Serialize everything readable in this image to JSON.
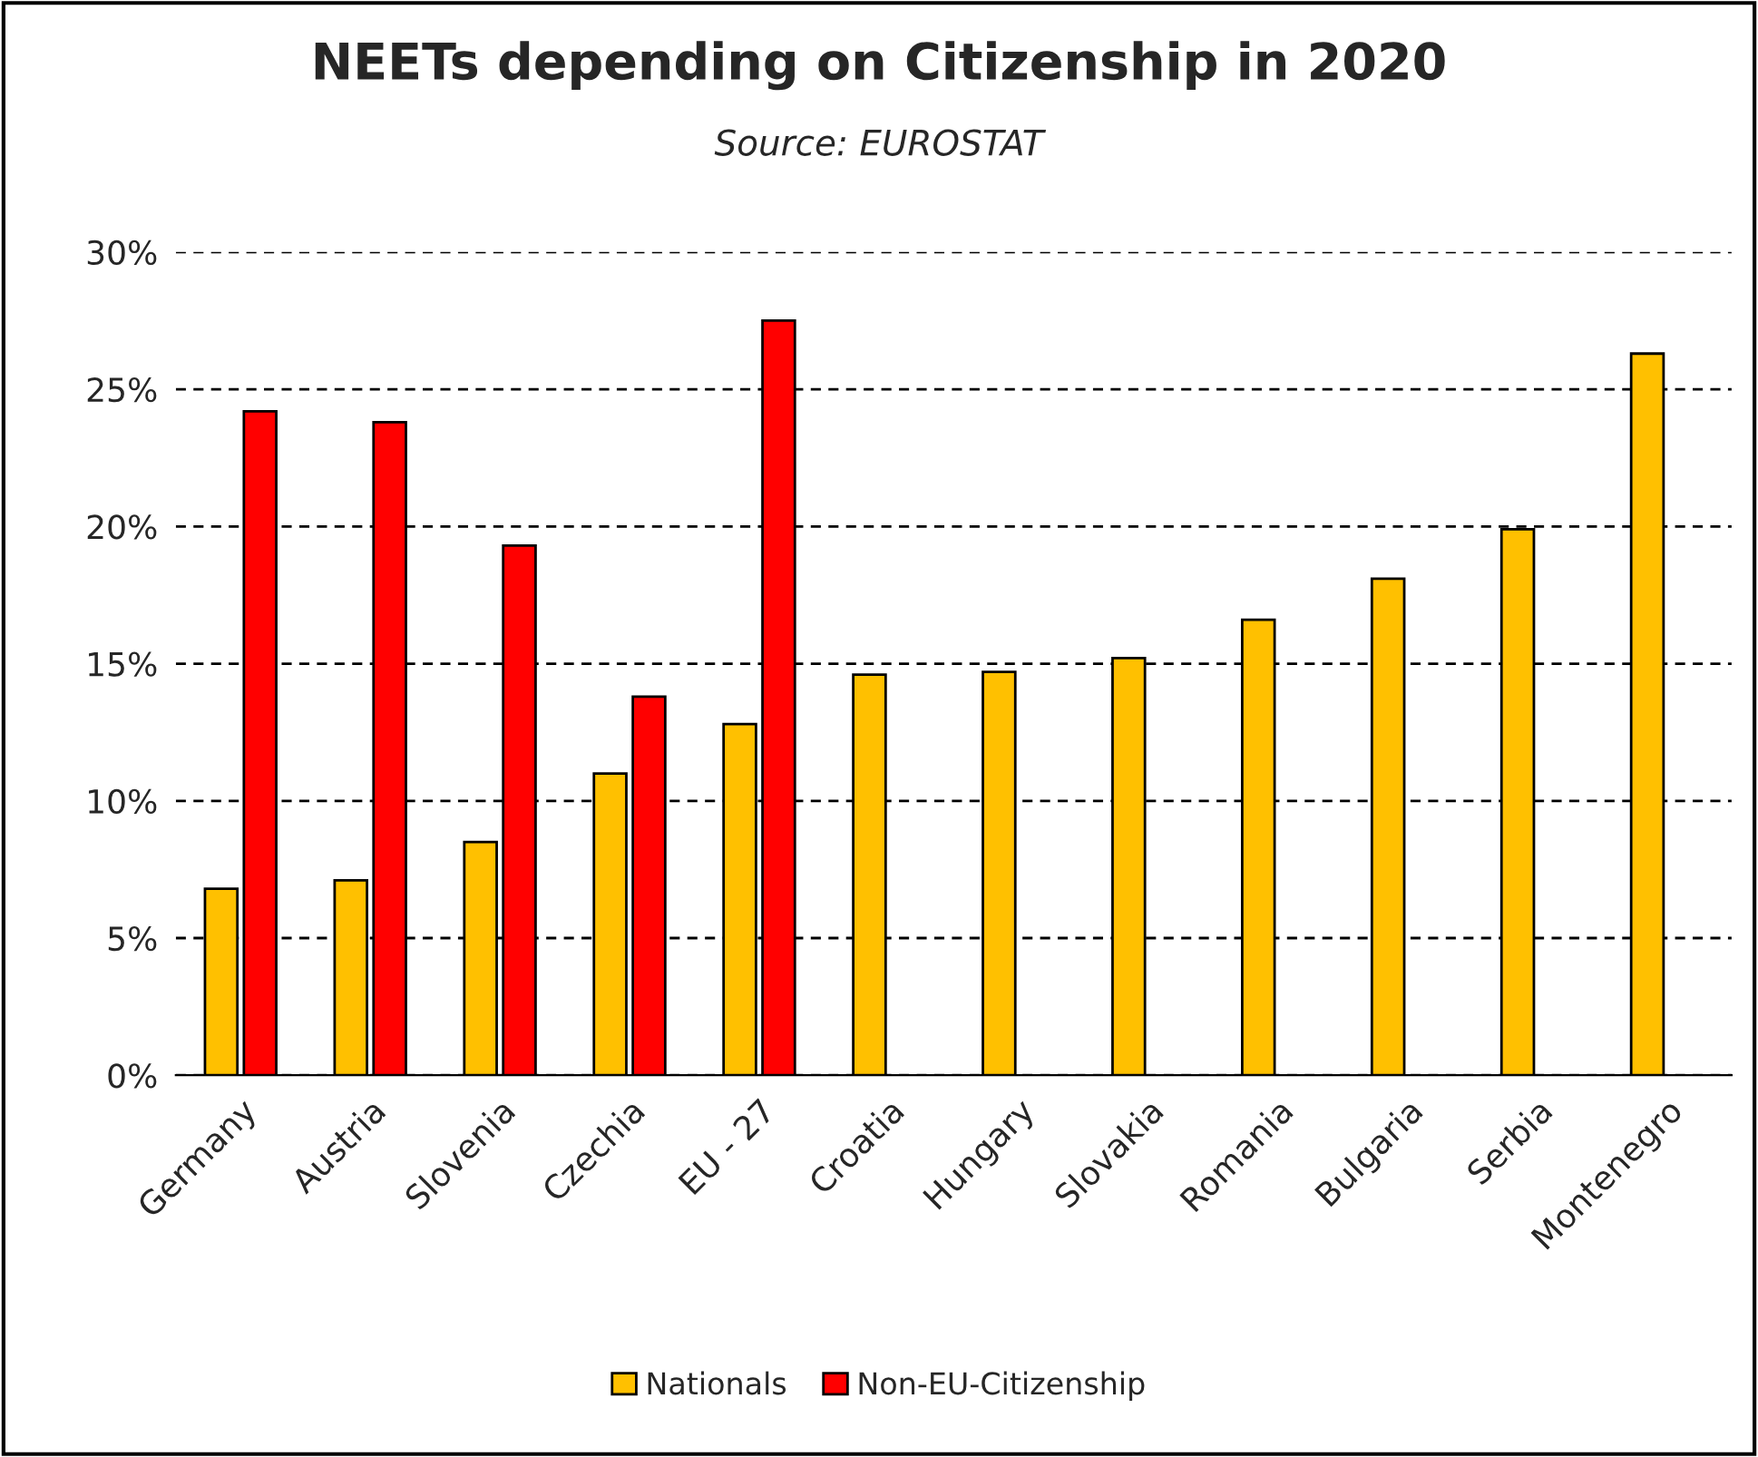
{
  "chart_data": {
    "type": "bar",
    "title": "NEETs depending on Citizenship in 2020",
    "subtitle": "Source: EUROSTAT",
    "categories": [
      "Germany",
      "Austria",
      "Slovenia",
      "Czechia",
      "EU - 27",
      "Croatia",
      "Hungary",
      "Slovakia",
      "Romania",
      "Bulgaria",
      "Serbia",
      "Montenegro"
    ],
    "series": [
      {
        "name": "Nationals",
        "color": "#ffc000",
        "values": [
          6.8,
          7.1,
          8.5,
          11.0,
          12.8,
          14.6,
          14.7,
          15.2,
          16.6,
          18.1,
          19.9,
          26.3
        ]
      },
      {
        "name": "Non-EU-Citizenship",
        "color": "#ff0000",
        "values": [
          24.2,
          23.8,
          19.3,
          13.8,
          27.5,
          null,
          null,
          null,
          null,
          null,
          null,
          null
        ]
      }
    ],
    "ylim": [
      0,
      30
    ],
    "yticks": [
      {
        "value": 0,
        "label": "0%"
      },
      {
        "value": 5,
        "label": "5%"
      },
      {
        "value": 10,
        "label": "10%"
      },
      {
        "value": 15,
        "label": "15%"
      },
      {
        "value": 20,
        "label": "20%"
      },
      {
        "value": 25,
        "label": "25%"
      },
      {
        "value": 30,
        "label": "30%"
      }
    ],
    "grid": "y",
    "legend": "bottom"
  }
}
